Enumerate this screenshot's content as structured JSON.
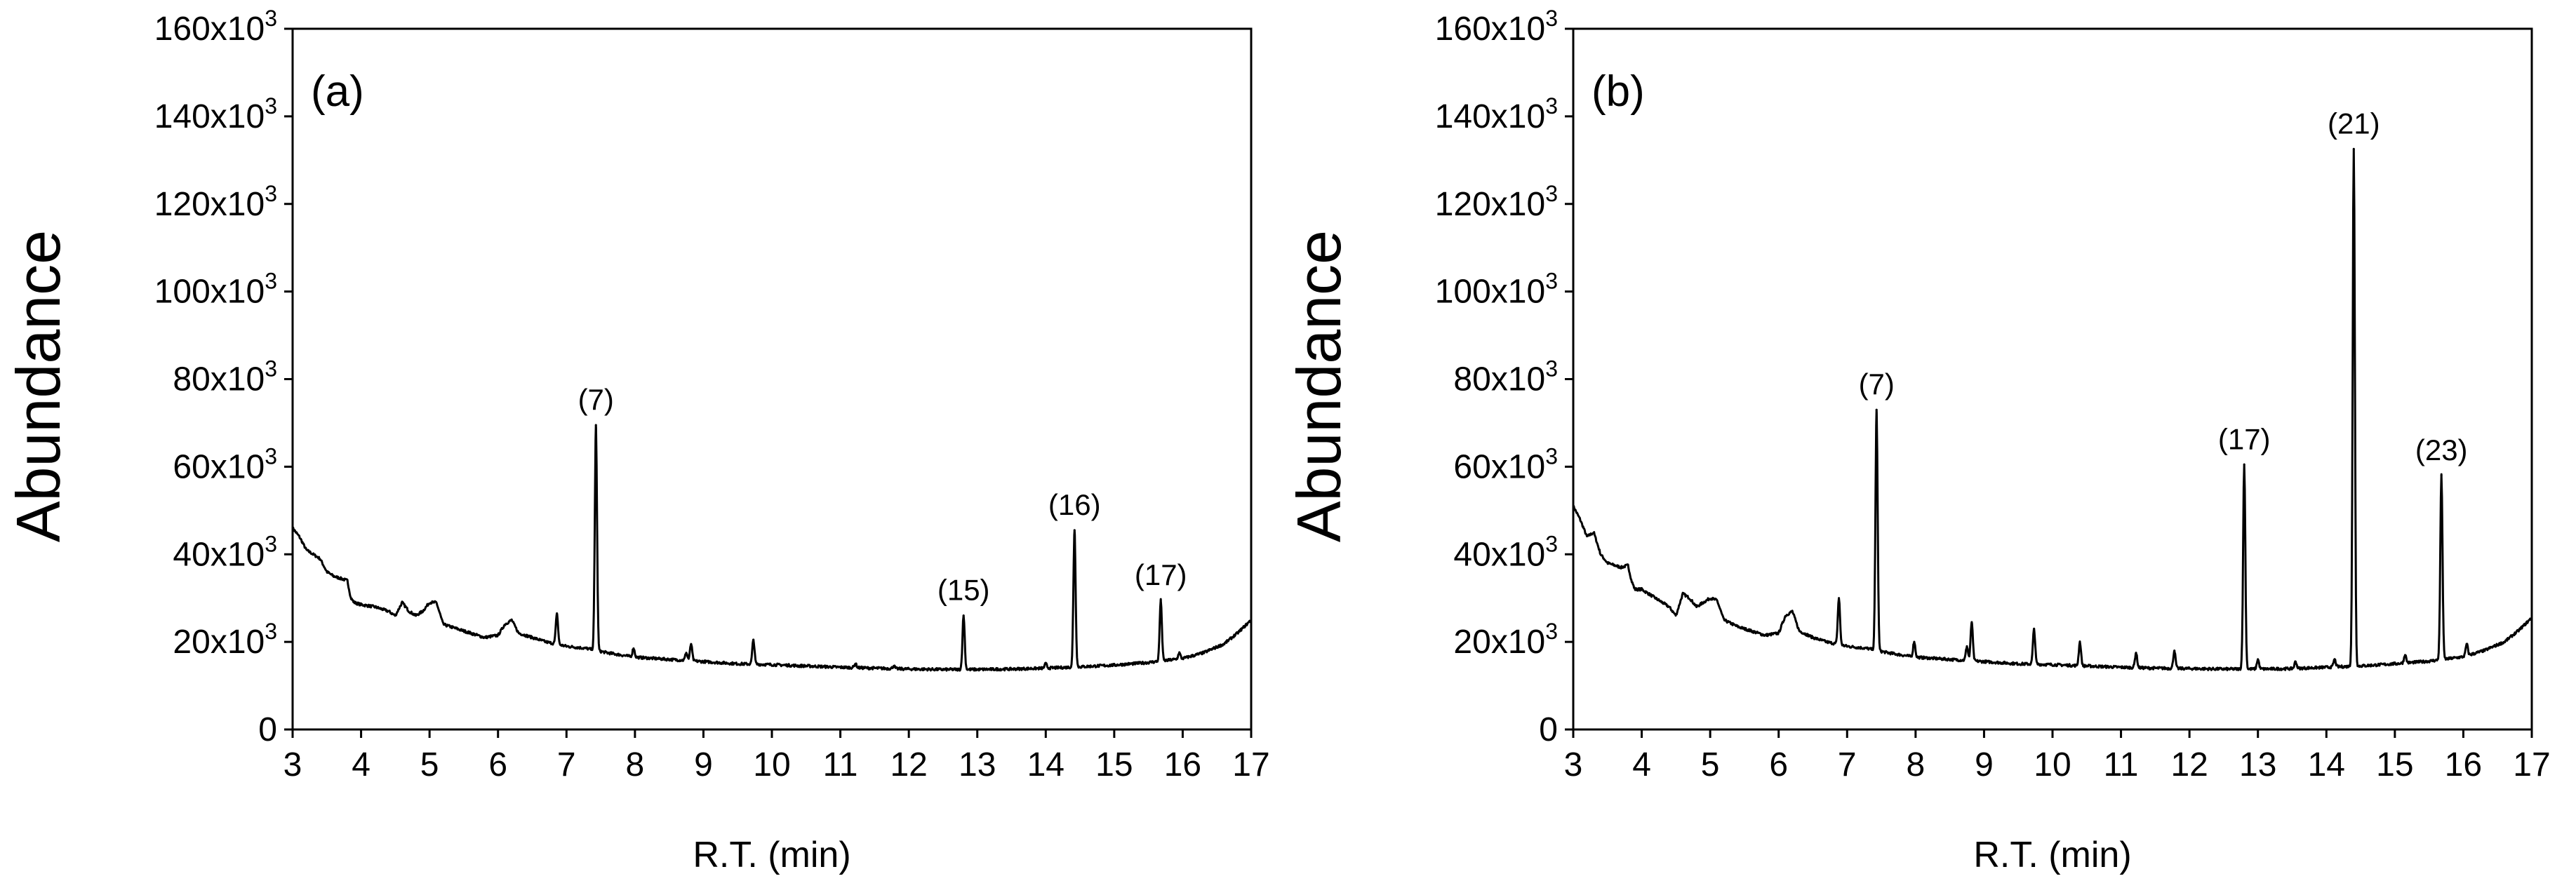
{
  "chart_data": [
    {
      "type": "line",
      "panel_label": "(a)",
      "xlabel": "R.T. (min)",
      "ylabel": "Abundance",
      "xlim": [
        3,
        17
      ],
      "ylim": [
        0,
        160000
      ],
      "x_ticks": [
        "3",
        "4",
        "5",
        "6",
        "7",
        "8",
        "9",
        "10",
        "11",
        "12",
        "13",
        "14",
        "15",
        "16",
        "17"
      ],
      "y_ticks": [
        {
          "value": 0,
          "base": "0",
          "exp": ""
        },
        {
          "value": 20000,
          "base": "20x10",
          "exp": "3"
        },
        {
          "value": 40000,
          "base": "40x10",
          "exp": "3"
        },
        {
          "value": 60000,
          "base": "60x10",
          "exp": "3"
        },
        {
          "value": 80000,
          "base": "80x10",
          "exp": "3"
        },
        {
          "value": 100000,
          "base": "100x10",
          "exp": "3"
        },
        {
          "value": 120000,
          "base": "120x10",
          "exp": "3"
        },
        {
          "value": 140000,
          "base": "140x10",
          "exp": "3"
        },
        {
          "value": 160000,
          "base": "160x10",
          "exp": "3"
        }
      ],
      "baseline": [
        [
          3.0,
          46000
        ],
        [
          3.1,
          44000
        ],
        [
          3.2,
          41000
        ],
        [
          3.3,
          40000
        ],
        [
          3.4,
          39000
        ],
        [
          3.5,
          36000
        ],
        [
          3.6,
          35000
        ],
        [
          3.7,
          34500
        ],
        [
          3.8,
          34000
        ],
        [
          3.85,
          30000
        ],
        [
          3.9,
          29000
        ],
        [
          4.0,
          28500
        ],
        [
          4.2,
          28000
        ],
        [
          4.4,
          27000
        ],
        [
          4.5,
          26000
        ],
        [
          4.6,
          29000
        ],
        [
          4.7,
          27000
        ],
        [
          4.8,
          26000
        ],
        [
          4.9,
          27000
        ],
        [
          5.0,
          29000
        ],
        [
          5.1,
          29000
        ],
        [
          5.2,
          24000
        ],
        [
          5.4,
          23000
        ],
        [
          5.6,
          22000
        ],
        [
          5.8,
          21000
        ],
        [
          6.0,
          21500
        ],
        [
          6.1,
          24000
        ],
        [
          6.2,
          25000
        ],
        [
          6.3,
          22000
        ],
        [
          6.5,
          21000
        ],
        [
          6.7,
          20000
        ],
        [
          7.0,
          19000
        ],
        [
          7.3,
          18500
        ],
        [
          7.6,
          17500
        ],
        [
          7.8,
          17000
        ],
        [
          8.0,
          16500
        ],
        [
          8.5,
          16000
        ],
        [
          9.0,
          15500
        ],
        [
          9.5,
          15000
        ],
        [
          10.0,
          14800
        ],
        [
          10.5,
          14500
        ],
        [
          11.0,
          14200
        ],
        [
          11.5,
          14000
        ],
        [
          12.0,
          13800
        ],
        [
          12.5,
          13700
        ],
        [
          13.0,
          13700
        ],
        [
          13.5,
          13800
        ],
        [
          14.0,
          14000
        ],
        [
          14.5,
          14300
        ],
        [
          15.0,
          14700
        ],
        [
          15.5,
          15300
        ],
        [
          16.0,
          16200
        ],
        [
          16.3,
          17500
        ],
        [
          16.6,
          19500
        ],
        [
          16.8,
          22000
        ],
        [
          17.0,
          25000
        ]
      ],
      "peaks": [
        [
          6.86,
          26500
        ],
        [
          7.43,
          69500
        ],
        [
          7.98,
          18500
        ],
        [
          8.75,
          17500
        ],
        [
          8.82,
          19500
        ],
        [
          9.73,
          20500
        ],
        [
          10.4,
          14500
        ],
        [
          11.22,
          15000
        ],
        [
          11.78,
          14500
        ],
        [
          12.8,
          26000
        ],
        [
          14.0,
          15000
        ],
        [
          14.42,
          45500
        ],
        [
          15.68,
          29500
        ],
        [
          15.95,
          17500
        ]
      ],
      "annotations": [
        {
          "text": "(7)",
          "x": 7.43,
          "y": 69500
        },
        {
          "text": "(15)",
          "x": 12.8,
          "y": 26000
        },
        {
          "text": "(16)",
          "x": 14.42,
          "y": 45500
        },
        {
          "text": "(17)",
          "x": 15.68,
          "y": 29500
        }
      ]
    },
    {
      "type": "line",
      "panel_label": "(b)",
      "xlabel": "R.T. (min)",
      "ylabel": "Abundance",
      "xlim": [
        3,
        17
      ],
      "ylim": [
        0,
        160000
      ],
      "x_ticks": [
        "3",
        "4",
        "5",
        "6",
        "7",
        "8",
        "9",
        "10",
        "11",
        "12",
        "13",
        "14",
        "15",
        "16",
        "17"
      ],
      "y_ticks": [
        {
          "value": 0,
          "base": "0",
          "exp": ""
        },
        {
          "value": 20000,
          "base": "20x10",
          "exp": "3"
        },
        {
          "value": 40000,
          "base": "40x10",
          "exp": "3"
        },
        {
          "value": 60000,
          "base": "60x10",
          "exp": "3"
        },
        {
          "value": 80000,
          "base": "80x10",
          "exp": "3"
        },
        {
          "value": 100000,
          "base": "100x10",
          "exp": "3"
        },
        {
          "value": 120000,
          "base": "120x10",
          "exp": "3"
        },
        {
          "value": 140000,
          "base": "140x10",
          "exp": "3"
        },
        {
          "value": 160000,
          "base": "160x10",
          "exp": "3"
        }
      ],
      "baseline": [
        [
          3.0,
          51000
        ],
        [
          3.1,
          48000
        ],
        [
          3.2,
          44000
        ],
        [
          3.3,
          45000
        ],
        [
          3.4,
          40000
        ],
        [
          3.5,
          38000
        ],
        [
          3.6,
          37500
        ],
        [
          3.7,
          37000
        ],
        [
          3.8,
          37500
        ],
        [
          3.85,
          34000
        ],
        [
          3.9,
          32000
        ],
        [
          4.0,
          32000
        ],
        [
          4.2,
          30000
        ],
        [
          4.4,
          28000
        ],
        [
          4.5,
          26000
        ],
        [
          4.6,
          31000
        ],
        [
          4.7,
          30000
        ],
        [
          4.8,
          28000
        ],
        [
          4.9,
          29000
        ],
        [
          5.0,
          30000
        ],
        [
          5.1,
          29500
        ],
        [
          5.2,
          25000
        ],
        [
          5.4,
          23500
        ],
        [
          5.6,
          22500
        ],
        [
          5.8,
          21500
        ],
        [
          6.0,
          22000
        ],
        [
          6.1,
          26000
        ],
        [
          6.2,
          27000
        ],
        [
          6.3,
          22500
        ],
        [
          6.5,
          21000
        ],
        [
          6.7,
          20000
        ],
        [
          7.0,
          19000
        ],
        [
          7.3,
          18500
        ],
        [
          7.6,
          17500
        ],
        [
          7.8,
          17000
        ],
        [
          8.0,
          16500
        ],
        [
          8.5,
          16000
        ],
        [
          9.0,
          15500
        ],
        [
          9.5,
          15000
        ],
        [
          10.0,
          14800
        ],
        [
          10.5,
          14500
        ],
        [
          11.0,
          14200
        ],
        [
          11.5,
          14000
        ],
        [
          12.0,
          13900
        ],
        [
          12.5,
          13800
        ],
        [
          13.0,
          13800
        ],
        [
          13.5,
          13900
        ],
        [
          14.0,
          14200
        ],
        [
          14.5,
          14500
        ],
        [
          15.0,
          15000
        ],
        [
          15.5,
          15600
        ],
        [
          16.0,
          16600
        ],
        [
          16.3,
          18000
        ],
        [
          16.6,
          20000
        ],
        [
          16.8,
          22500
        ],
        [
          17.0,
          25500
        ]
      ],
      "peaks": [
        [
          6.88,
          30000
        ],
        [
          7.43,
          73000
        ],
        [
          7.98,
          20000
        ],
        [
          8.75,
          19000
        ],
        [
          8.82,
          24500
        ],
        [
          9.73,
          23000
        ],
        [
          10.4,
          20000
        ],
        [
          11.22,
          17500
        ],
        [
          11.78,
          18000
        ],
        [
          12.8,
          60500
        ],
        [
          13.0,
          16000
        ],
        [
          13.55,
          15500
        ],
        [
          14.12,
          16000
        ],
        [
          14.4,
          132500
        ],
        [
          15.15,
          17000
        ],
        [
          15.68,
          58000
        ],
        [
          16.05,
          19500
        ]
      ],
      "annotations": [
        {
          "text": "(7)",
          "x": 7.43,
          "y": 73000
        },
        {
          "text": "(17)",
          "x": 12.8,
          "y": 60500
        },
        {
          "text": "(21)",
          "x": 14.4,
          "y": 132500
        },
        {
          "text": "(23)",
          "x": 15.68,
          "y": 58000
        }
      ]
    }
  ]
}
